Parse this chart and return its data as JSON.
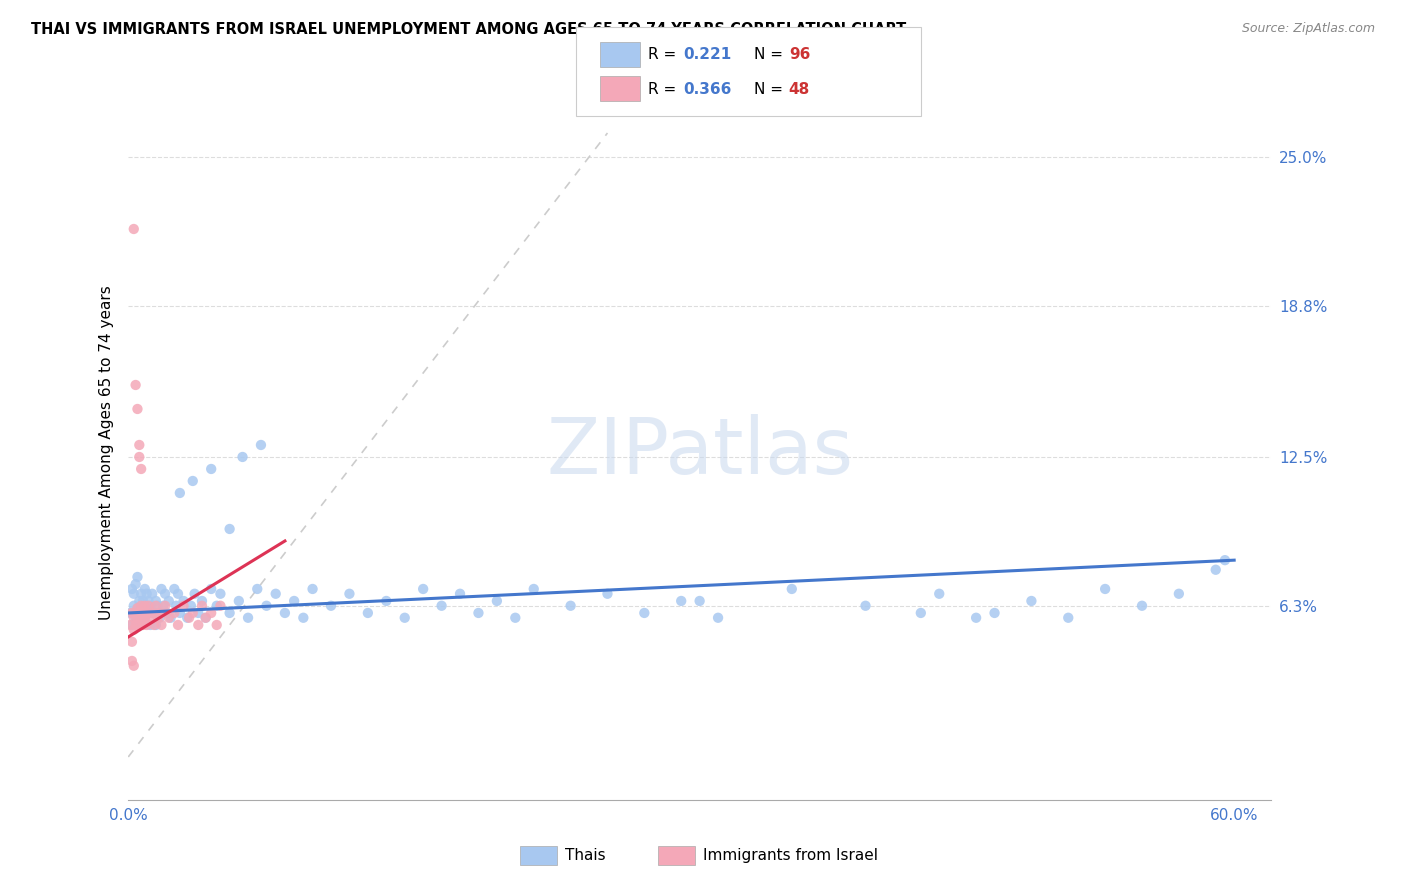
{
  "title": "THAI VS IMMIGRANTS FROM ISRAEL UNEMPLOYMENT AMONG AGES 65 TO 74 YEARS CORRELATION CHART",
  "source": "Source: ZipAtlas.com",
  "ylabel": "Unemployment Among Ages 65 to 74 years",
  "xlim": [
    0.0,
    0.62
  ],
  "ylim": [
    -0.018,
    0.272
  ],
  "ytick_vals": [
    0.063,
    0.125,
    0.188,
    0.25
  ],
  "ytick_labels": [
    "6.3%",
    "12.5%",
    "18.8%",
    "25.0%"
  ],
  "xtick_vals": [
    0.0,
    0.6
  ],
  "xtick_labels": [
    "0.0%",
    "60.0%"
  ],
  "r_thai": 0.221,
  "n_thai": 96,
  "r_israel": 0.366,
  "n_israel": 48,
  "blue_color": "#a8c8f0",
  "pink_color": "#f4a8b8",
  "trend_blue": "#4477cc",
  "trend_pink": "#dd3355",
  "diagonal_color": "#cccccc",
  "thai_x": [
    0.001,
    0.002,
    0.002,
    0.003,
    0.003,
    0.004,
    0.004,
    0.005,
    0.005,
    0.006,
    0.006,
    0.007,
    0.007,
    0.008,
    0.008,
    0.009,
    0.009,
    0.01,
    0.01,
    0.011,
    0.011,
    0.012,
    0.012,
    0.013,
    0.014,
    0.015,
    0.015,
    0.016,
    0.017,
    0.018,
    0.019,
    0.02,
    0.021,
    0.022,
    0.023,
    0.025,
    0.026,
    0.027,
    0.028,
    0.03,
    0.032,
    0.034,
    0.036,
    0.038,
    0.04,
    0.042,
    0.045,
    0.048,
    0.05,
    0.055,
    0.06,
    0.065,
    0.07,
    0.075,
    0.08,
    0.085,
    0.09,
    0.095,
    0.1,
    0.11,
    0.12,
    0.13,
    0.14,
    0.15,
    0.16,
    0.17,
    0.18,
    0.19,
    0.2,
    0.21,
    0.22,
    0.24,
    0.26,
    0.28,
    0.3,
    0.32,
    0.36,
    0.4,
    0.44,
    0.47,
    0.49,
    0.51,
    0.53,
    0.55,
    0.57,
    0.59,
    0.595,
    0.31,
    0.43,
    0.46,
    0.028,
    0.035,
    0.045,
    0.055,
    0.062,
    0.072
  ],
  "thai_y": [
    0.06,
    0.055,
    0.07,
    0.063,
    0.068,
    0.058,
    0.072,
    0.062,
    0.075,
    0.06,
    0.065,
    0.055,
    0.068,
    0.06,
    0.065,
    0.058,
    0.07,
    0.063,
    0.068,
    0.06,
    0.065,
    0.055,
    0.063,
    0.068,
    0.06,
    0.065,
    0.055,
    0.063,
    0.058,
    0.07,
    0.063,
    0.068,
    0.06,
    0.065,
    0.058,
    0.07,
    0.063,
    0.068,
    0.06,
    0.065,
    0.058,
    0.063,
    0.068,
    0.06,
    0.065,
    0.058,
    0.07,
    0.063,
    0.068,
    0.06,
    0.065,
    0.058,
    0.07,
    0.063,
    0.068,
    0.06,
    0.065,
    0.058,
    0.07,
    0.063,
    0.068,
    0.06,
    0.065,
    0.058,
    0.07,
    0.063,
    0.068,
    0.06,
    0.065,
    0.058,
    0.07,
    0.063,
    0.068,
    0.06,
    0.065,
    0.058,
    0.07,
    0.063,
    0.068,
    0.06,
    0.065,
    0.058,
    0.07,
    0.063,
    0.068,
    0.078,
    0.082,
    0.065,
    0.06,
    0.058,
    0.11,
    0.115,
    0.12,
    0.095,
    0.125,
    0.13
  ],
  "israel_x": [
    0.001,
    0.002,
    0.002,
    0.003,
    0.003,
    0.004,
    0.004,
    0.005,
    0.005,
    0.006,
    0.006,
    0.007,
    0.007,
    0.008,
    0.008,
    0.009,
    0.009,
    0.01,
    0.01,
    0.011,
    0.012,
    0.013,
    0.014,
    0.015,
    0.016,
    0.017,
    0.018,
    0.02,
    0.022,
    0.025,
    0.027,
    0.03,
    0.033,
    0.035,
    0.038,
    0.04,
    0.042,
    0.045,
    0.048,
    0.05,
    0.003,
    0.004,
    0.005,
    0.006,
    0.006,
    0.007,
    0.002,
    0.003
  ],
  "israel_y": [
    0.055,
    0.06,
    0.048,
    0.058,
    0.053,
    0.055,
    0.06,
    0.058,
    0.062,
    0.055,
    0.06,
    0.063,
    0.058,
    0.06,
    0.055,
    0.063,
    0.058,
    0.06,
    0.055,
    0.063,
    0.058,
    0.06,
    0.055,
    0.063,
    0.058,
    0.06,
    0.055,
    0.063,
    0.058,
    0.06,
    0.055,
    0.063,
    0.058,
    0.06,
    0.055,
    0.063,
    0.058,
    0.06,
    0.055,
    0.063,
    0.22,
    0.155,
    0.145,
    0.13,
    0.125,
    0.12,
    0.04,
    0.038
  ],
  "thai_trend_x": [
    0.0,
    0.6
  ],
  "thai_trend_y": [
    0.06,
    0.082
  ],
  "israel_trend_x": [
    0.0,
    0.085
  ],
  "israel_trend_y": [
    0.05,
    0.09
  ]
}
